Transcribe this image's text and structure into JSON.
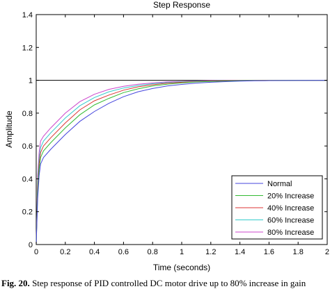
{
  "chart_data": {
    "type": "line",
    "title": "Step Response",
    "xlabel": "Time (seconds)",
    "ylabel": "Amplitude",
    "xlim": [
      0,
      2
    ],
    "ylim": [
      0,
      1.4
    ],
    "xticks": [
      "0",
      "0.2",
      "0.4",
      "0.6",
      "0.8",
      "1",
      "1.2",
      "1.4",
      "1.6",
      "1.8",
      "2"
    ],
    "yticks": [
      "0",
      "0.2",
      "0.4",
      "0.6",
      "0.8",
      "1",
      "1.2",
      "1.4"
    ],
    "reference_line": 1,
    "legend_position": "bottom-right",
    "grid": false,
    "x": [
      0,
      0.01,
      0.02,
      0.03,
      0.05,
      0.1,
      0.2,
      0.3,
      0.4,
      0.5,
      0.6,
      0.7,
      0.8,
      0.9,
      1.0,
      1.1,
      1.2,
      1.3,
      1.4,
      1.5,
      1.6,
      1.8,
      2.0
    ],
    "series": [
      {
        "name": "Normal",
        "color": "#4444dd",
        "values": [
          0,
          0.28,
          0.42,
          0.49,
          0.53,
          0.58,
          0.67,
          0.75,
          0.81,
          0.86,
          0.9,
          0.93,
          0.95,
          0.965,
          0.975,
          0.983,
          0.988,
          0.992,
          0.995,
          0.997,
          0.998,
          0.999,
          1.0
        ]
      },
      {
        "name": "20% Increase",
        "color": "#33bb33",
        "values": [
          0,
          0.32,
          0.46,
          0.53,
          0.57,
          0.62,
          0.71,
          0.79,
          0.85,
          0.89,
          0.925,
          0.948,
          0.965,
          0.976,
          0.984,
          0.99,
          0.993,
          0.995,
          0.997,
          0.998,
          0.999,
          1.0,
          1.0
        ]
      },
      {
        "name": "40% Increase",
        "color": "#dd3333",
        "values": [
          0,
          0.35,
          0.49,
          0.56,
          0.6,
          0.65,
          0.74,
          0.82,
          0.875,
          0.91,
          0.94,
          0.96,
          0.973,
          0.982,
          0.988,
          0.992,
          0.995,
          0.997,
          0.998,
          0.999,
          1.0,
          1.0,
          1.0
        ]
      },
      {
        "name": "60% Increase",
        "color": "#33cccc",
        "values": [
          0,
          0.38,
          0.52,
          0.59,
          0.63,
          0.68,
          0.77,
          0.845,
          0.895,
          0.93,
          0.953,
          0.968,
          0.979,
          0.986,
          0.991,
          0.994,
          0.996,
          0.998,
          0.999,
          1.0,
          1.0,
          1.0,
          1.0
        ]
      },
      {
        "name": "80% Increase",
        "color": "#cc44cc",
        "values": [
          0,
          0.42,
          0.56,
          0.63,
          0.66,
          0.71,
          0.8,
          0.87,
          0.915,
          0.945,
          0.963,
          0.976,
          0.984,
          0.99,
          0.993,
          0.996,
          0.998,
          0.999,
          1.0,
          1.0,
          1.0,
          1.0,
          1.0
        ]
      }
    ]
  },
  "caption": {
    "label": "Fig. 20.",
    "text": "Step response of PID controlled DC motor drive up to 80% increase in gain"
  }
}
